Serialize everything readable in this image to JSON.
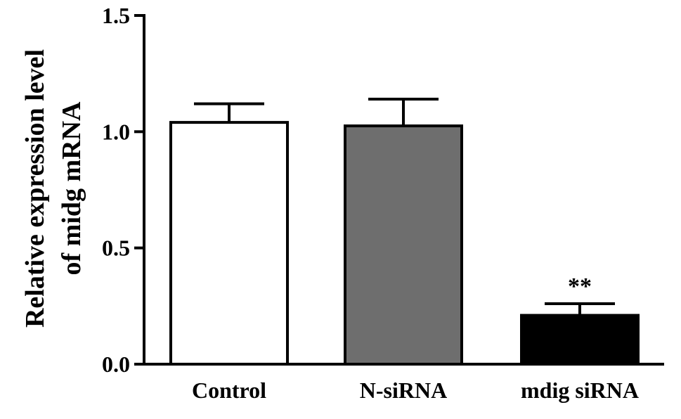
{
  "chart_data": {
    "type": "bar",
    "categories": [
      "Control",
      "N-siRNA",
      "mdig siRNA"
    ],
    "values": [
      1.04,
      1.025,
      0.21
    ],
    "errors": [
      0.08,
      0.115,
      0.05
    ],
    "bar_colors": [
      "#ffffff",
      "#6e6e6e",
      "#000000"
    ],
    "annotations": [
      {
        "category": "mdig siRNA",
        "text": "**"
      }
    ],
    "ylabel_lines": [
      "Relative expression level",
      "of midg mRNA"
    ],
    "xlabel": "",
    "title": "",
    "ylim": [
      0,
      1.5
    ],
    "y_ticks": [
      0.0,
      0.5,
      1.0,
      1.5
    ],
    "y_tick_labels": [
      "0.0",
      "0.5",
      "1.0",
      "1.5"
    ],
    "grid": false
  }
}
